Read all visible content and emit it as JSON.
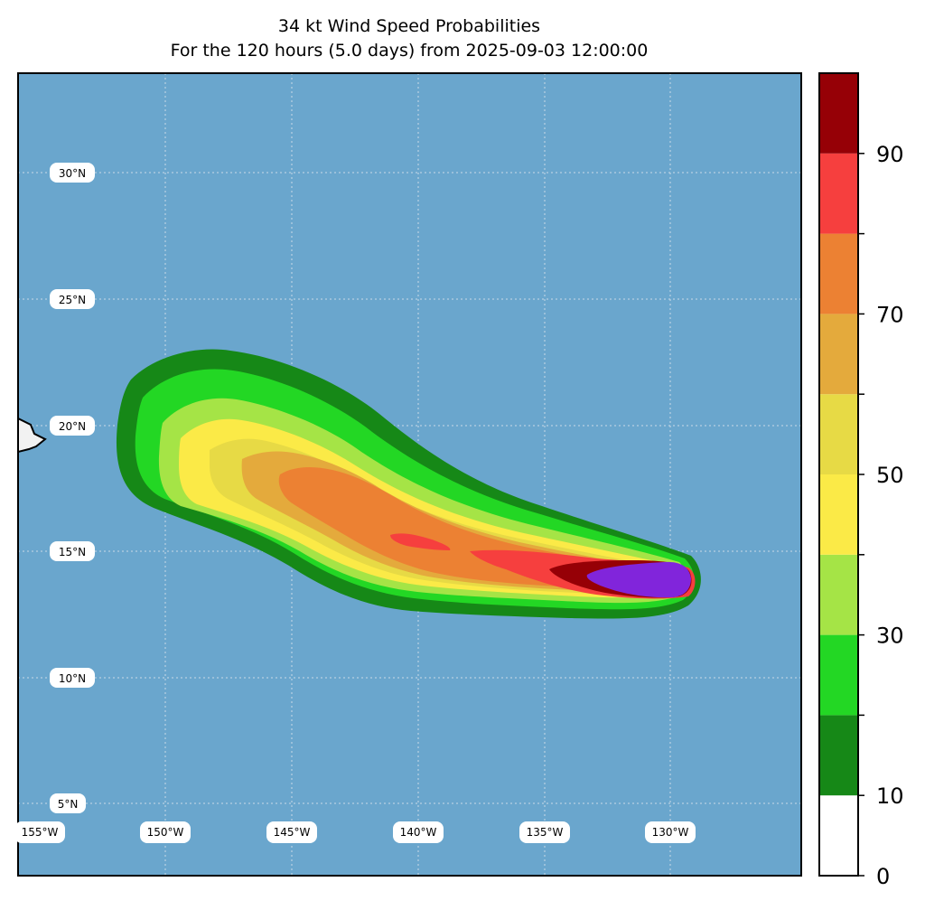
{
  "title": "34 kt Wind Speed Probabilities",
  "subtitle": "For the 120 hours (5.0 days) from 2025-09-03 12:00:00",
  "ocean_color": "#6aa6cd",
  "land_color": "#f2f2f2",
  "lat_labels": [
    "30°N",
    "25°N",
    "20°N",
    "15°N",
    "10°N",
    "5°N"
  ],
  "lon_labels": [
    "155°W",
    "150°W",
    "145°W",
    "140°W",
    "135°W",
    "130°W"
  ],
  "colorbar": {
    "levels": [
      0,
      10,
      20,
      30,
      40,
      50,
      60,
      70,
      80,
      90,
      100
    ],
    "colors": [
      "#ffffff",
      "#168817",
      "#23d724",
      "#a5e446",
      "#fbea47",
      "#e7da45",
      "#e4aa3c",
      "#ec8133",
      "#f63f3e",
      "#960006",
      "#8125db"
    ],
    "tick_labels": [
      "0",
      "10",
      "30",
      "50",
      "70",
      "90"
    ]
  }
}
